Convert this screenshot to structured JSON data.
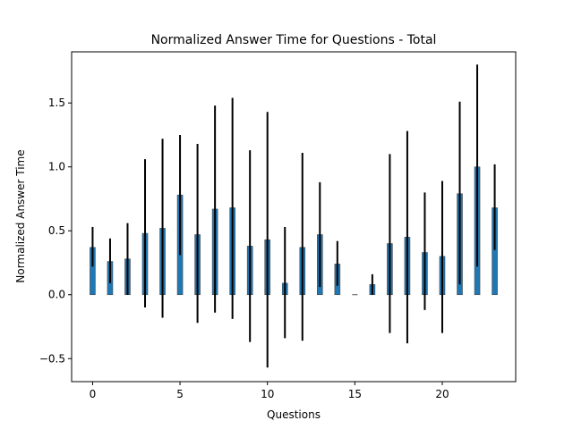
{
  "chart_data": {
    "type": "bar",
    "title": "Normalized Answer Time for Questions - Total",
    "xlabel": "Questions",
    "ylabel": "Normalized Answer Time",
    "xlim": [
      -1.2,
      24.2
    ],
    "ylim": [
      -0.68,
      1.9
    ],
    "xticks": [
      0,
      5,
      10,
      15,
      20
    ],
    "xtick_labels": [
      "0",
      "5",
      "10",
      "15",
      "20"
    ],
    "yticks": [
      -0.5,
      0.0,
      0.5,
      1.0,
      1.5
    ],
    "ytick_labels": [
      "−0.5",
      "0.0",
      "0.5",
      "1.0",
      "1.5"
    ],
    "grid": false,
    "bar_color": "#1f77b4",
    "error_color": "#000000",
    "x": [
      0,
      1,
      2,
      3,
      4,
      5,
      6,
      7,
      8,
      9,
      10,
      11,
      12,
      13,
      14,
      15,
      16,
      17,
      18,
      19,
      20,
      21,
      22,
      23
    ],
    "values": [
      0.37,
      0.26,
      0.28,
      0.48,
      0.52,
      0.78,
      0.47,
      0.67,
      0.68,
      0.38,
      0.43,
      0.09,
      0.37,
      0.47,
      0.24,
      0.0,
      0.08,
      0.4,
      0.45,
      0.33,
      0.3,
      0.79,
      1.0,
      0.68
    ],
    "error_low": [
      0.22,
      0.09,
      0.0,
      -0.1,
      -0.18,
      0.31,
      -0.22,
      -0.14,
      -0.19,
      -0.37,
      -0.57,
      -0.34,
      -0.36,
      0.06,
      0.07,
      0.0,
      0.0,
      -0.3,
      -0.38,
      -0.12,
      -0.3,
      0.08,
      0.22,
      0.35
    ],
    "error_high": [
      0.53,
      0.44,
      0.56,
      1.06,
      1.22,
      1.25,
      1.18,
      1.48,
      1.54,
      1.13,
      1.43,
      0.53,
      1.11,
      0.88,
      0.42,
      0.0,
      0.16,
      1.1,
      1.28,
      0.8,
      0.89,
      1.51,
      1.8,
      1.02
    ]
  }
}
